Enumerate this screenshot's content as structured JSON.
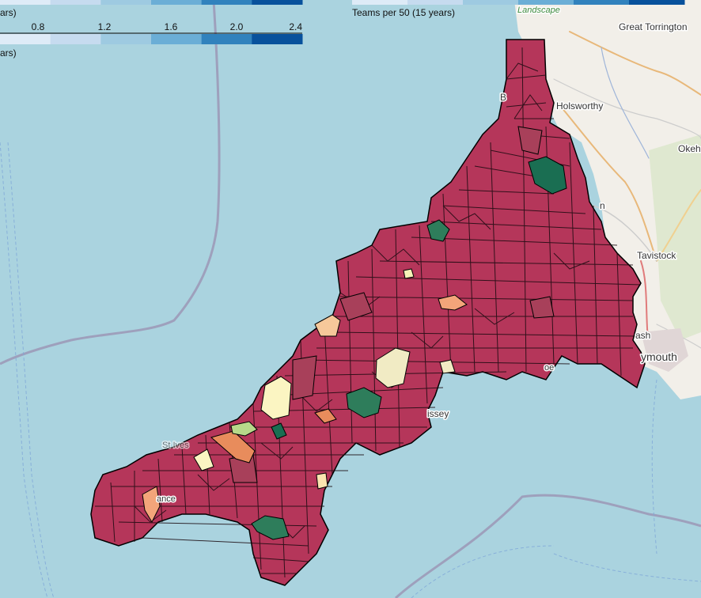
{
  "legend_left": {
    "title_top": "ars)",
    "title_bottom": "ars)",
    "ticks": [
      "0.8",
      "1.2",
      "1.6",
      "2.0",
      "2.4"
    ],
    "colors": [
      "#deebf7",
      "#c6dbef",
      "#9ecae1",
      "#6baed6",
      "#3182bd",
      "#08519c"
    ]
  },
  "legend_right": {
    "title": "Teams per 50 (15 years)",
    "colors": [
      "#deebf7",
      "#c6dbef",
      "#9ecae1",
      "#6baed6",
      "#3182bd",
      "#08519c"
    ]
  },
  "places": {
    "landscape": "Landscape",
    "great_torrington": "Great Torrington",
    "holsworthy": "Holsworthy",
    "okeh": "Okeh",
    "tavistock": "Tavistock",
    "ash": "ash",
    "plymouth": "ymouth",
    "gorran": "issey",
    "st_ives": "St Ives",
    "penzance": "ance",
    "bude": "B",
    "looe": "oe",
    "n": "n"
  },
  "colors": {
    "sea": "#aad3df",
    "land": "#f2efe9",
    "parish_main": "#b5365a",
    "parish_dark": "#a8405a",
    "green_dark": "#1a6e52",
    "green_mid": "#2e7d5b",
    "yellow": "#fbf5c2",
    "light_yellow": "#f1ebc4",
    "orange": "#e88c5c",
    "peach": "#f3a57a",
    "light_green": "#b7d98a",
    "boundary": "#9a8fb0"
  }
}
